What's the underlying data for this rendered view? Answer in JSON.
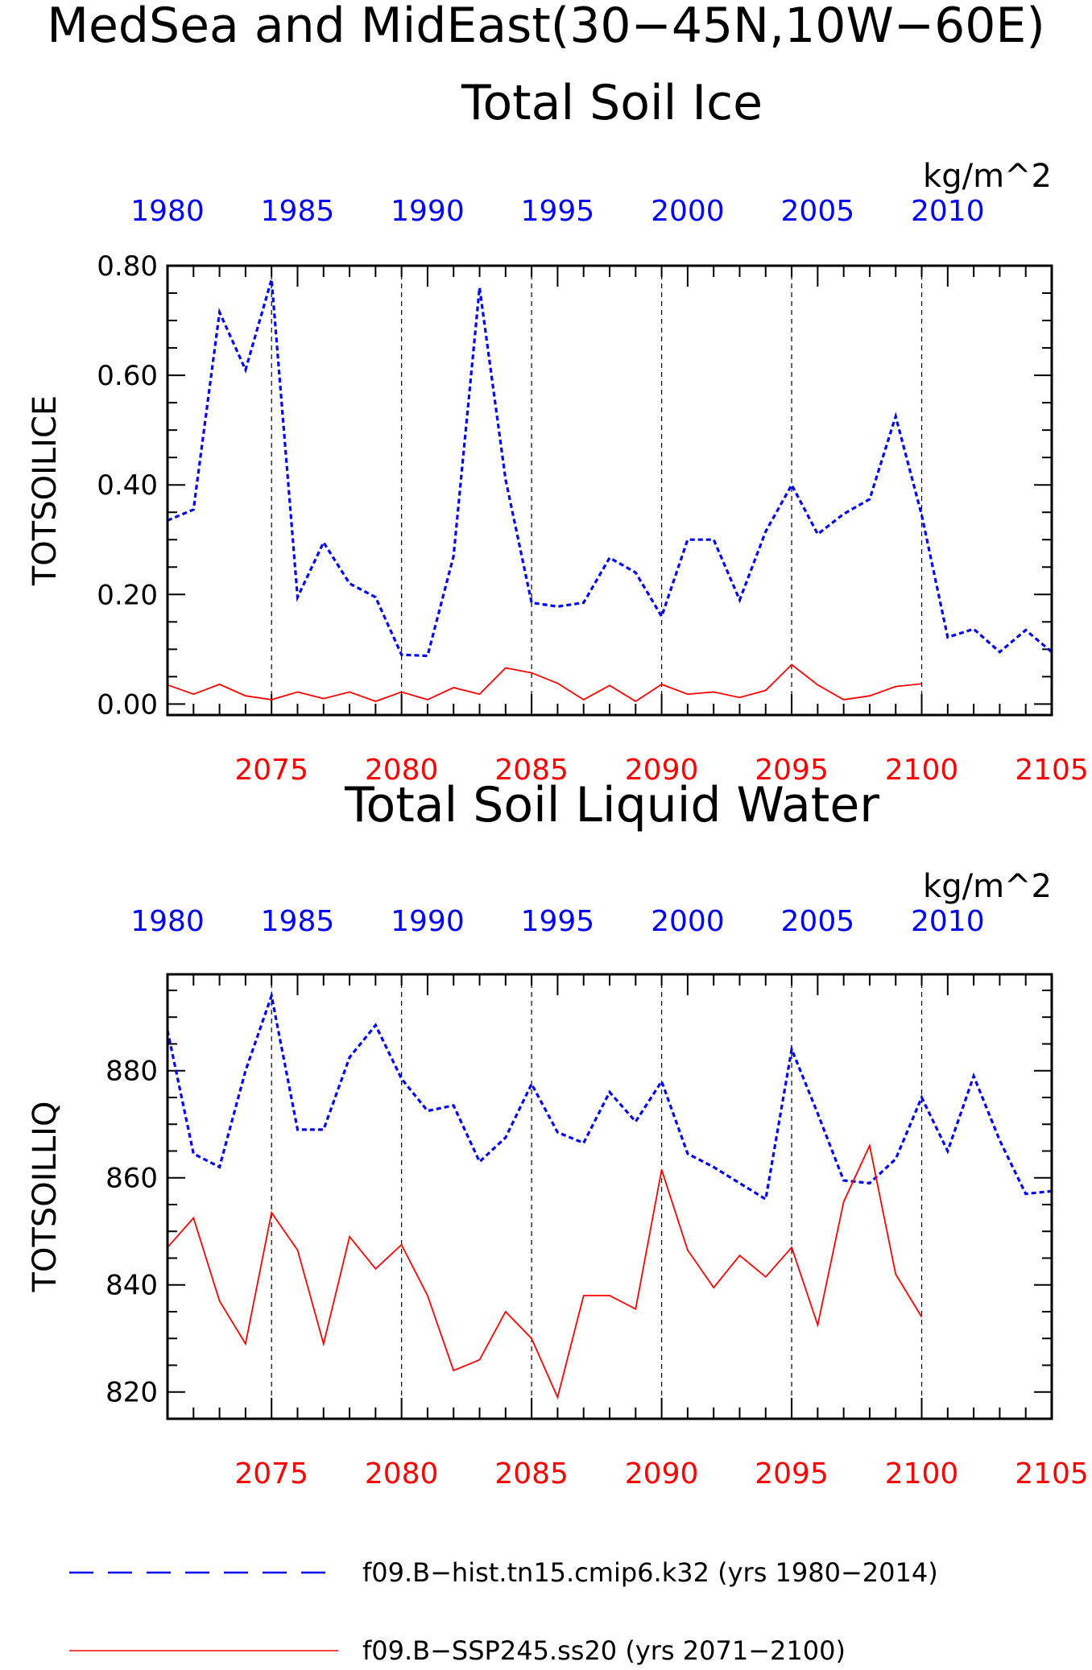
{
  "title": "MedSea and MidEast(30−45N,10W−60E)",
  "colors": {
    "hist": "#0000ff",
    "ssp": "#ff0000"
  },
  "legend": [
    {
      "label": "f09.B−hist.tn15.cmip6.k32 (yrs 1980−2014)",
      "style": "dashed",
      "color": "#0000ff"
    },
    {
      "label": "f09.B−SSP245.ss20 (yrs 2071−2100)",
      "style": "solid",
      "color": "#ff0000"
    }
  ],
  "chart_data": [
    {
      "type": "line",
      "title": "Total Soil Ice",
      "units": "kg/m^2",
      "ylabel": "TOTSOILICE",
      "ylim": [
        -0.02,
        0.8
      ],
      "yticks": [
        0.0,
        0.2,
        0.4,
        0.6,
        0.8
      ],
      "ytick_labels": [
        "0.00",
        "0.20",
        "0.40",
        "0.60",
        "0.80"
      ],
      "top_axis": {
        "range": [
          1980,
          2014
        ],
        "ticks": [
          1980,
          1985,
          1990,
          1995,
          2000,
          2005,
          2010
        ],
        "labels": [
          "1980",
          "1985",
          "1990",
          "1995",
          "2000",
          "2005",
          "2010"
        ]
      },
      "bottom_axis": {
        "range": [
          2071,
          2105
        ],
        "ticks": [
          2075,
          2080,
          2085,
          2090,
          2095,
          2100,
          2105
        ],
        "labels": [
          "2075",
          "2080",
          "2085",
          "2090",
          "2095",
          "2100",
          "2105"
        ]
      },
      "grid": "vertical dashed at major ticks",
      "series": [
        {
          "name": "f09.B−hist.tn15.cmip6.k32",
          "axis": "top",
          "style": "dashed",
          "color": "#0000ff",
          "x": [
            1980,
            1981,
            1982,
            1983,
            1984,
            1985,
            1986,
            1987,
            1988,
            1989,
            1990,
            1991,
            1992,
            1993,
            1994,
            1995,
            1996,
            1997,
            1998,
            1999,
            2000,
            2001,
            2002,
            2003,
            2004,
            2005,
            2006,
            2007,
            2008,
            2009,
            2010,
            2011,
            2012,
            2013,
            2014
          ],
          "values": [
            0.335,
            0.355,
            0.715,
            0.61,
            0.775,
            0.195,
            0.295,
            0.22,
            0.195,
            0.09,
            0.088,
            0.27,
            0.76,
            0.41,
            0.185,
            0.178,
            0.185,
            0.267,
            0.24,
            0.16,
            0.3,
            0.3,
            0.19,
            0.315,
            0.4,
            0.31,
            0.347,
            0.374,
            0.525,
            0.345,
            0.122,
            0.137,
            0.095,
            0.135,
            0.095
          ]
        },
        {
          "name": "f09.B−SSP245.ss20",
          "axis": "bottom",
          "style": "solid",
          "color": "#ff0000",
          "x": [
            2071,
            2072,
            2073,
            2074,
            2075,
            2076,
            2077,
            2078,
            2079,
            2080,
            2081,
            2082,
            2083,
            2084,
            2085,
            2086,
            2087,
            2088,
            2089,
            2090,
            2091,
            2092,
            2093,
            2094,
            2095,
            2096,
            2097,
            2098,
            2099,
            2100
          ],
          "values": [
            0.035,
            0.018,
            0.036,
            0.015,
            0.008,
            0.022,
            0.01,
            0.022,
            0.005,
            0.022,
            0.008,
            0.03,
            0.018,
            0.066,
            0.057,
            0.038,
            0.008,
            0.034,
            0.005,
            0.036,
            0.018,
            0.022,
            0.012,
            0.025,
            0.072,
            0.035,
            0.008,
            0.015,
            0.032,
            0.037
          ]
        }
      ]
    },
    {
      "type": "line",
      "title": "Total Soil Liquid Water",
      "units": "kg/m^2",
      "ylabel": "TOTSOILLIQ",
      "ylim": [
        815,
        898
      ],
      "yticks": [
        820,
        840,
        860,
        880
      ],
      "ytick_labels": [
        "820",
        "840",
        "860",
        "880"
      ],
      "top_axis": {
        "range": [
          1980,
          2014
        ],
        "ticks": [
          1980,
          1985,
          1990,
          1995,
          2000,
          2005,
          2010
        ],
        "labels": [
          "1980",
          "1985",
          "1990",
          "1995",
          "2000",
          "2005",
          "2010"
        ]
      },
      "bottom_axis": {
        "range": [
          2071,
          2105
        ],
        "ticks": [
          2075,
          2080,
          2085,
          2090,
          2095,
          2100,
          2105
        ],
        "labels": [
          "2075",
          "2080",
          "2085",
          "2090",
          "2095",
          "2100",
          "2105"
        ]
      },
      "grid": "vertical dashed at major ticks",
      "series": [
        {
          "name": "f09.B−hist.tn15.cmip6.k32",
          "axis": "top",
          "style": "dashed",
          "color": "#0000ff",
          "x": [
            1980,
            1981,
            1982,
            1983,
            1984,
            1985,
            1986,
            1987,
            1988,
            1989,
            1990,
            1991,
            1992,
            1993,
            1994,
            1995,
            1996,
            1997,
            1998,
            1999,
            2000,
            2001,
            2002,
            2003,
            2004,
            2005,
            2006,
            2007,
            2008,
            2009,
            2010,
            2011,
            2012,
            2013,
            2014
          ],
          "values": [
            887.5,
            864.5,
            862.0,
            880.0,
            894.0,
            869.0,
            869.0,
            882.5,
            888.5,
            878.5,
            872.5,
            873.5,
            863.0,
            867.5,
            877.5,
            868.5,
            866.5,
            876.0,
            870.5,
            878.0,
            864.5,
            862.0,
            859.0,
            856.0,
            884.0,
            872.0,
            859.5,
            859.0,
            863.5,
            875.0,
            865.0,
            879.0,
            867.0,
            857.0,
            857.5
          ]
        },
        {
          "name": "f09.B−SSP245.ss20",
          "axis": "bottom",
          "style": "solid",
          "color": "#ff0000",
          "x": [
            2071,
            2072,
            2073,
            2074,
            2075,
            2076,
            2077,
            2078,
            2079,
            2080,
            2081,
            2082,
            2083,
            2084,
            2085,
            2086,
            2087,
            2088,
            2089,
            2090,
            2091,
            2092,
            2093,
            2094,
            2095,
            2096,
            2097,
            2098,
            2099,
            2100
          ],
          "values": [
            847.0,
            852.5,
            837.0,
            829.0,
            853.5,
            846.5,
            829.0,
            849.0,
            843.0,
            847.5,
            838.0,
            824.0,
            826.0,
            835.0,
            830.0,
            819.0,
            838.0,
            838.0,
            835.5,
            861.5,
            846.5,
            839.5,
            845.5,
            841.5,
            847.0,
            832.5,
            855.5,
            866.0,
            842.0,
            834.0
          ]
        }
      ]
    }
  ]
}
